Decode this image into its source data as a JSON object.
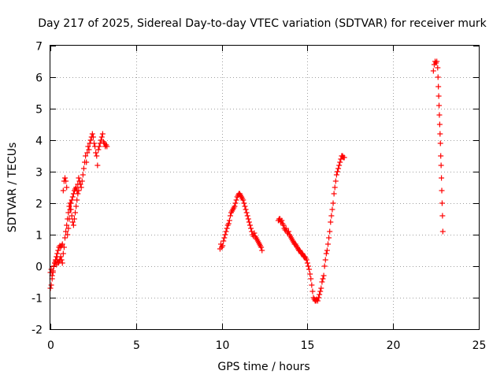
{
  "chart_data": {
    "type": "scatter",
    "title": "Day 217 of 2025, Sidereal Day-to-day VTEC variation (SDTVAR) for receiver murk",
    "xlabel": "GPS time / hours",
    "ylabel": "SDTVAR / TECUs",
    "xlim": [
      0,
      25
    ],
    "ylim": [
      -2,
      7
    ],
    "xticks": [
      "0",
      "5",
      "10",
      "15",
      "20",
      "25"
    ],
    "yticks": [
      "-2",
      "-1",
      "0",
      "1",
      "2",
      "3",
      "4",
      "5",
      "6",
      "7"
    ],
    "grid": true,
    "marker": "+",
    "color": "#ff0000",
    "series": [
      {
        "x": [
          0.0,
          0.05,
          0.1,
          0.15,
          0.2,
          0.25,
          0.3,
          0.35,
          0.4,
          0.45,
          0.5,
          0.55,
          0.6,
          0.65,
          0.7,
          0.75,
          0.8,
          0.85,
          0.9,
          0.95,
          1.0,
          1.05,
          1.1,
          1.15,
          1.2,
          1.25,
          1.3,
          1.35,
          1.4,
          1.45,
          1.5,
          1.55,
          1.6,
          1.65,
          1.7,
          1.75,
          1.8,
          1.85,
          1.9,
          1.95,
          2.0,
          2.05,
          2.1,
          2.15,
          2.2,
          2.25,
          2.3,
          2.35,
          2.4,
          2.45,
          2.5,
          2.55,
          2.6,
          2.65,
          2.7,
          2.75,
          2.8,
          2.85,
          2.9,
          2.95,
          3.0,
          3.05,
          3.1,
          3.15,
          3.2,
          3.25,
          3.3
        ],
        "y": [
          -0.7,
          -0.6,
          -0.4,
          -0.2,
          0.0,
          0.1,
          0.2,
          0.3,
          0.4,
          0.5,
          0.6,
          0.65,
          0.6,
          0.65,
          0.7,
          2.4,
          2.7,
          2.8,
          2.7,
          2.5,
          1.0,
          1.2,
          1.5,
          1.8,
          2.0,
          2.1,
          2.2,
          2.3,
          2.4,
          2.45,
          2.5,
          2.4,
          2.6,
          2.8,
          2.7,
          2.6,
          2.5,
          2.7,
          2.9,
          3.1,
          3.3,
          3.5,
          3.3,
          3.6,
          3.8,
          3.7,
          3.9,
          4.0,
          4.1,
          4.2,
          4.1,
          3.9,
          3.8,
          3.6,
          3.5,
          3.2,
          3.7,
          3.8,
          3.9,
          4.0,
          4.1,
          4.2,
          3.95,
          3.9,
          3.8,
          3.85,
          3.8
        ]
      },
      {
        "x": [
          0.0,
          0.05,
          0.1,
          0.15,
          0.2,
          0.25,
          0.3,
          0.35,
          0.4,
          0.45,
          0.5,
          0.55,
          0.6,
          0.65,
          0.7,
          0.75,
          0.8,
          0.85,
          0.9,
          0.95,
          1.0,
          1.05,
          1.1,
          1.15,
          1.2,
          1.25,
          1.3,
          1.35,
          1.4,
          1.45,
          1.5,
          1.55,
          1.6,
          1.65
        ],
        "y": [
          -0.2,
          -0.1,
          -0.3,
          -0.15,
          0.0,
          0.1,
          0.15,
          0.05,
          0.2,
          0.1,
          0.15,
          0.2,
          0.3,
          0.2,
          0.1,
          0.4,
          0.6,
          0.9,
          1.1,
          1.3,
          1.5,
          1.7,
          1.9,
          2.0,
          1.8,
          1.6,
          1.4,
          1.3,
          1.5,
          1.7,
          1.9,
          2.1,
          2.3,
          2.4
        ]
      },
      {
        "x": [
          9.9,
          9.95,
          10.0,
          10.05,
          10.1,
          10.15,
          10.2,
          10.25,
          10.3,
          10.35,
          10.4,
          10.45,
          10.5,
          10.55,
          10.6,
          10.65,
          10.7,
          10.75,
          10.8,
          10.85,
          10.9,
          10.95,
          11.0,
          11.05,
          11.1,
          11.15,
          11.2,
          11.25,
          11.3,
          11.35,
          11.4,
          11.45,
          11.5,
          11.55,
          11.6,
          11.65,
          11.7,
          11.75,
          11.8,
          11.85,
          11.9,
          11.95,
          12.0,
          12.05,
          12.1,
          12.15,
          12.2,
          12.25,
          12.3,
          12.35
        ],
        "y": [
          0.55,
          0.7,
          0.6,
          0.65,
          0.8,
          0.9,
          1.0,
          1.1,
          1.2,
          1.3,
          1.35,
          1.45,
          1.6,
          1.7,
          1.75,
          1.8,
          1.85,
          1.9,
          2.0,
          2.1,
          2.2,
          2.25,
          2.3,
          2.3,
          2.25,
          2.2,
          2.15,
          2.1,
          2.0,
          1.9,
          1.8,
          1.7,
          1.6,
          1.5,
          1.4,
          1.3,
          1.2,
          1.1,
          1.0,
          0.95,
          1.05,
          0.95,
          0.9,
          0.85,
          0.8,
          0.75,
          0.7,
          0.65,
          0.6,
          0.5
        ]
      },
      {
        "x": [
          13.3,
          13.35,
          13.4,
          13.45,
          13.5,
          13.55,
          13.6,
          13.65,
          13.7,
          13.75,
          13.8,
          13.85,
          13.9,
          13.95,
          14.0,
          14.05,
          14.1,
          14.15,
          14.2,
          14.25,
          14.3,
          14.35,
          14.4,
          14.45,
          14.5,
          14.55,
          14.6,
          14.65,
          14.7,
          14.75,
          14.8,
          14.85,
          14.9,
          14.95,
          15.0,
          15.05,
          15.1,
          15.15,
          15.2,
          15.25,
          15.3,
          15.35,
          15.4,
          15.45,
          15.5,
          15.55,
          15.6,
          15.65,
          15.7,
          15.75,
          15.8,
          15.85,
          15.9,
          15.95,
          16.0,
          16.05,
          16.1,
          16.15,
          16.2,
          16.25,
          16.3,
          16.35,
          16.4,
          16.45,
          16.5,
          16.55,
          16.6,
          16.65,
          16.7,
          16.75,
          16.8,
          16.85,
          16.9,
          16.95,
          17.0,
          17.05,
          17.1,
          17.15
        ],
        "y": [
          1.45,
          1.5,
          1.5,
          1.4,
          1.45,
          1.35,
          1.3,
          1.2,
          1.15,
          1.2,
          1.1,
          1.05,
          1.1,
          1.0,
          0.95,
          0.9,
          0.85,
          0.8,
          0.75,
          0.7,
          0.7,
          0.65,
          0.6,
          0.55,
          0.5,
          0.5,
          0.45,
          0.4,
          0.4,
          0.35,
          0.3,
          0.3,
          0.25,
          0.2,
          0.1,
          0.0,
          -0.1,
          -0.25,
          -0.4,
          -0.6,
          -0.8,
          -1.0,
          -1.05,
          -1.1,
          -1.1,
          -1.05,
          -1.1,
          -1.0,
          -0.9,
          -0.8,
          -0.7,
          -0.5,
          -0.4,
          -0.3,
          0.0,
          0.2,
          0.4,
          0.5,
          0.7,
          0.9,
          1.1,
          1.4,
          1.6,
          1.8,
          2.0,
          2.3,
          2.5,
          2.7,
          2.9,
          3.0,
          3.1,
          3.2,
          3.3,
          3.4,
          3.5,
          3.5,
          3.45,
          3.45
        ]
      },
      {
        "x": [
          22.35,
          22.4,
          22.45,
          22.5,
          22.55,
          22.6,
          22.62,
          22.64,
          22.66,
          22.68,
          22.7,
          22.72,
          22.74,
          22.76,
          22.78,
          22.8,
          22.82,
          22.84,
          22.86,
          22.88,
          22.9
        ],
        "y": [
          6.2,
          6.4,
          6.5,
          6.45,
          6.5,
          6.3,
          6.0,
          5.7,
          5.4,
          5.1,
          4.8,
          4.5,
          4.2,
          3.9,
          3.5,
          3.2,
          2.8,
          2.4,
          2.0,
          1.6,
          1.1
        ]
      }
    ]
  }
}
